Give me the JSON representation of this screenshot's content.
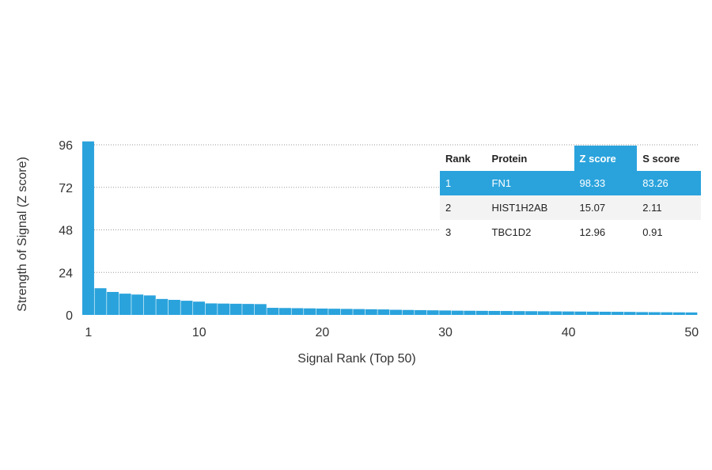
{
  "chart_data": {
    "type": "bar",
    "xlabel": "Signal Rank (Top 50)",
    "ylabel": "Strength of Signal (Z score)",
    "ylim": [
      0,
      96
    ],
    "yticks": [
      0,
      24,
      48,
      72,
      96
    ],
    "xticks": [
      1,
      10,
      20,
      30,
      40,
      50
    ],
    "grid": "horizontal dotted",
    "bar_color": "#2aa3dc",
    "x": [
      1,
      2,
      3,
      4,
      5,
      6,
      7,
      8,
      9,
      10,
      11,
      12,
      13,
      14,
      15,
      16,
      17,
      18,
      19,
      20,
      21,
      22,
      23,
      24,
      25,
      26,
      27,
      28,
      29,
      30,
      31,
      32,
      33,
      34,
      35,
      36,
      37,
      38,
      39,
      40,
      41,
      42,
      43,
      44,
      45,
      46,
      47,
      48,
      49,
      50
    ],
    "values": [
      98.33,
      15.07,
      12.96,
      12.0,
      11.5,
      11.0,
      9.0,
      8.5,
      8.0,
      7.5,
      6.5,
      6.4,
      6.3,
      6.2,
      6.1,
      4.0,
      3.9,
      3.8,
      3.7,
      3.6,
      3.5,
      3.4,
      3.3,
      3.2,
      3.1,
      2.9,
      2.8,
      2.7,
      2.6,
      2.5,
      2.4,
      2.35,
      2.3,
      2.25,
      2.2,
      2.15,
      2.1,
      2.05,
      2.0,
      1.95,
      1.9,
      1.85,
      1.8,
      1.75,
      1.7,
      1.6,
      1.55,
      1.5,
      1.45,
      1.4
    ]
  },
  "table": {
    "headers": [
      "Rank",
      "Protein",
      "Z score",
      "S score"
    ],
    "rows": [
      [
        "1",
        "FN1",
        "98.33",
        "83.26"
      ],
      [
        "2",
        "HIST1H2AB",
        "15.07",
        "2.11"
      ],
      [
        "3",
        "TBC1D2",
        "12.96",
        "0.91"
      ]
    ],
    "highlight_color": "#2aa3dc"
  }
}
